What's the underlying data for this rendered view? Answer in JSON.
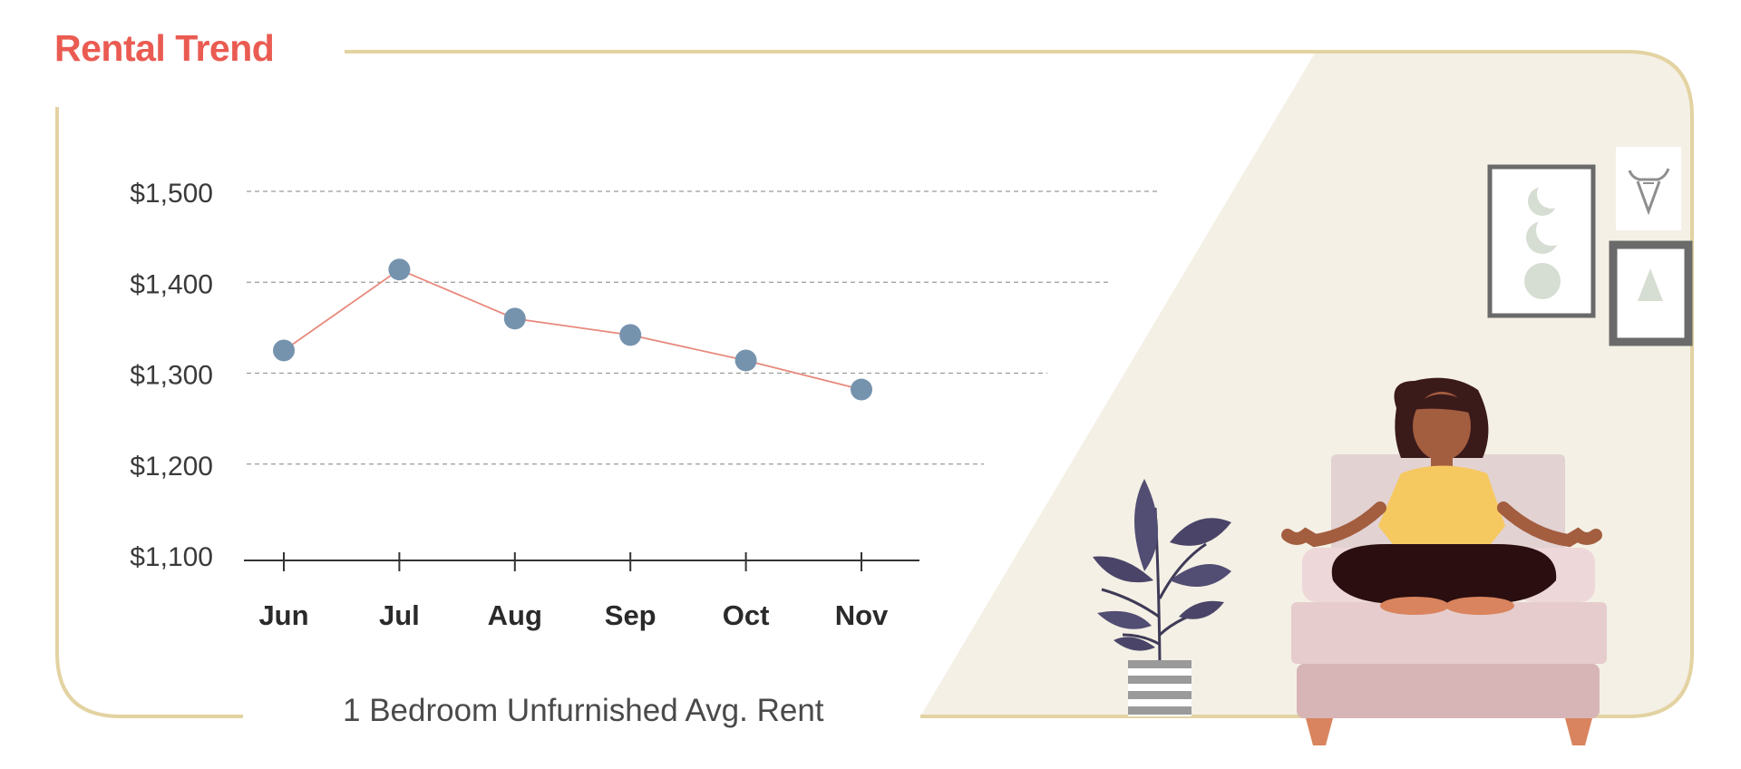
{
  "title": "Rental Trend",
  "caption": "1 Bedroom Unfurnished Avg. Rent",
  "colors": {
    "title": "#ea5b52",
    "frame": "#e3d3a2",
    "room_bg": "#f4f0e5",
    "line": "#e8897c",
    "marker": "#7693ae",
    "grid": "#9a9a9a",
    "axis": "#333333"
  },
  "chart_data": {
    "type": "line",
    "categories": [
      "Jun",
      "Jul",
      "Aug",
      "Sep",
      "Oct",
      "Nov"
    ],
    "values": [
      1325,
      1414,
      1360,
      1342,
      1314,
      1282
    ],
    "ylim": [
      1100,
      1500
    ],
    "yticks": [
      1500,
      1400,
      1300,
      1200,
      1100
    ],
    "ytick_labels": [
      "$1,500",
      "$1,400",
      "$1,300",
      "$1,200",
      "$1,100"
    ],
    "grid": true,
    "title": "Rental Trend",
    "xlabel": "1 Bedroom Unfurnished Avg. Rent",
    "ylabel": ""
  },
  "illustration": {
    "icons": [
      "houseplant-icon",
      "bull-logo-icon",
      "framed-moons-art-icon",
      "framed-triangle-art-icon",
      "armchair-icon",
      "meditating-woman-icon"
    ]
  }
}
